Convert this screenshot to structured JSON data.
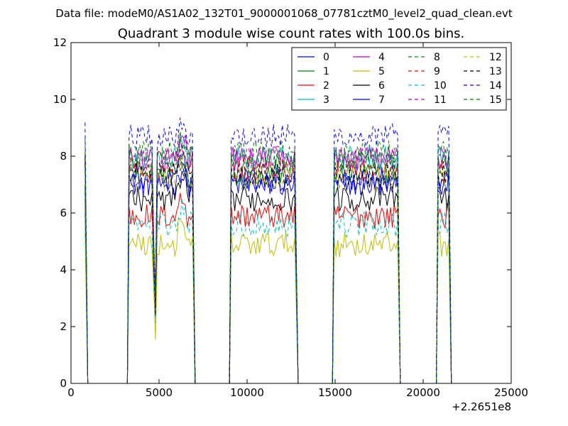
{
  "figure": {
    "suptitle": "Data file: modeM0/AS1A02_132T01_9000001068_07781cztM0_level2_quad_clean.evt"
  },
  "chart_data": {
    "type": "line",
    "title": "Quadrant 3 module wise count rates with 100.0s bins.",
    "xlabel": "",
    "ylabel": "",
    "xlim": [
      0,
      25000
    ],
    "ylim": [
      0,
      12
    ],
    "x_offset_label": "+2.2651e8",
    "xticks": [
      0,
      5000,
      10000,
      15000,
      20000,
      25000
    ],
    "yticks": [
      0,
      2,
      4,
      6,
      8,
      10,
      12
    ],
    "grid": false,
    "legend": {
      "placement": "top-right",
      "columns": 4
    },
    "x_resolution_seconds": 100,
    "segments": [
      {
        "start": 850,
        "end": 900
      },
      {
        "start": 3300,
        "end": 6900
      },
      {
        "start": 9100,
        "end": 12750
      },
      {
        "start": 14950,
        "end": 18550
      },
      {
        "start": 20850,
        "end": 21450
      }
    ],
    "series": [
      {
        "name": "0",
        "color": "#0000ff",
        "dash": "solid",
        "level": 7.0
      },
      {
        "name": "1",
        "color": "#008000",
        "dash": "solid",
        "level": 7.4
      },
      {
        "name": "2",
        "color": "#ff0000",
        "dash": "solid",
        "level": 5.9
      },
      {
        "name": "3",
        "color": "#00bfbf",
        "dash": "solid",
        "level": 7.9
      },
      {
        "name": "4",
        "color": "#bf00bf",
        "dash": "solid",
        "level": 7.9
      },
      {
        "name": "5",
        "color": "#bfbf00",
        "dash": "solid",
        "level": 4.9
      },
      {
        "name": "6",
        "color": "#000000",
        "dash": "solid",
        "level": 6.5
      },
      {
        "name": "7",
        "color": "#0000ff",
        "dash": "solid",
        "level": 7.2
      },
      {
        "name": "8",
        "color": "#008000",
        "dash": "dashed",
        "level": 7.8
      },
      {
        "name": "9",
        "color": "#ff0000",
        "dash": "dashed",
        "level": 7.5
      },
      {
        "name": "10",
        "color": "#00bfbf",
        "dash": "dashed",
        "level": 5.6
      },
      {
        "name": "11",
        "color": "#bf00bf",
        "dash": "dashed",
        "level": 7.9
      },
      {
        "name": "12",
        "color": "#bfbf00",
        "dash": "dashed",
        "level": 7.2
      },
      {
        "name": "13",
        "color": "#000000",
        "dash": "dashed",
        "level": 7.4
      },
      {
        "name": "14",
        "color": "#0000ff",
        "dash": "dashed",
        "level": 8.7
      },
      {
        "name": "15",
        "color": "#008000",
        "dash": "dashed",
        "level": 8.1
      }
    ]
  }
}
